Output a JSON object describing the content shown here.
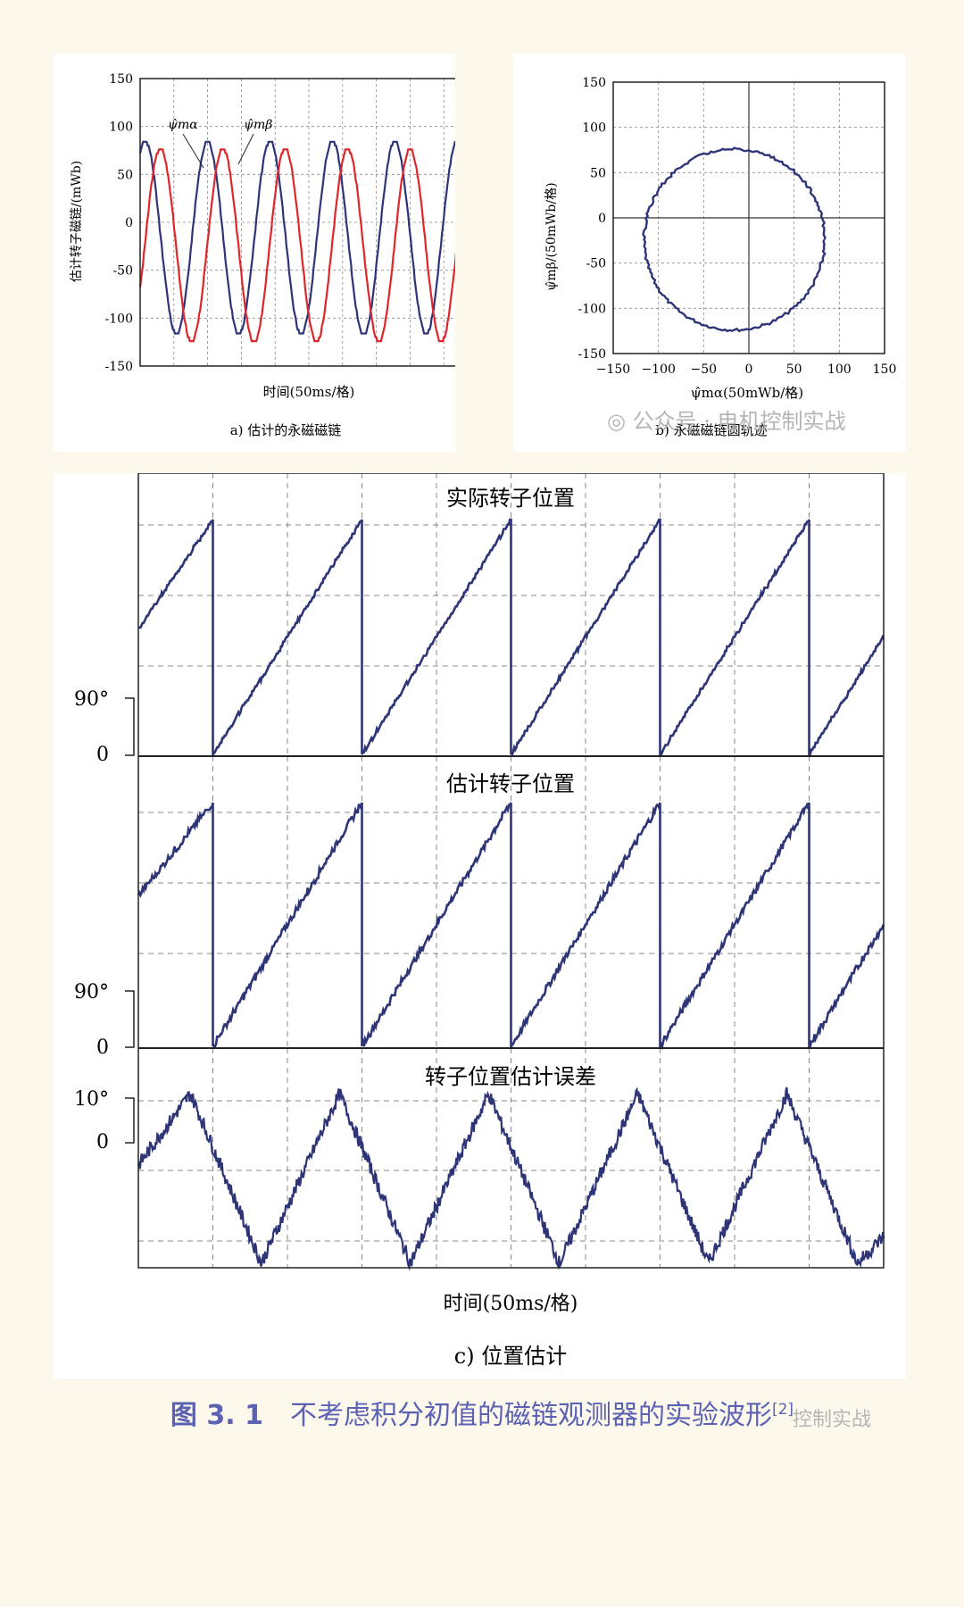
{
  "colors": {
    "blue": "#2e3577",
    "red": "#e0262a",
    "grid": "#8a8a8a",
    "caption": "#5b62b3"
  },
  "captions": {
    "a": "a) 估计的永磁磁链",
    "b": "b) 永磁磁链圆轨迹",
    "c": "c) 位置估计",
    "figure_number": "图 3. 1",
    "figure_title": "不考虑积分初值的磁链观测器的实验波形",
    "ref": "[2]"
  },
  "watermarks": {
    "top": "公众号 · 电机控制实战",
    "bottom": "控制实战"
  },
  "chart_data": [
    {
      "id": "a",
      "type": "line",
      "xlabel": "时间(50ms/格)",
      "ylabel": "估计转子磁链/(mWb)",
      "ylim": [
        -150,
        150
      ],
      "yticks": [
        150,
        100,
        50,
        0,
        -50,
        -100,
        -150
      ],
      "grid": true,
      "x_divisions": 10,
      "x_unit": "divisions (50ms each)",
      "series": [
        {
          "name": "ψ̂mα",
          "color": "blue",
          "shape": "sine",
          "max": 85,
          "min": -117,
          "period_div": 1.85,
          "first_peak_div": 0.15
        },
        {
          "name": "ψ̂mβ",
          "color": "red",
          "shape": "sine",
          "max": 77,
          "min": -125,
          "period_div": 1.85,
          "first_peak_div": 0.6
        }
      ],
      "series_labels": [
        "ψ̂mα",
        "ψ̂mβ"
      ]
    },
    {
      "id": "b",
      "type": "scatter",
      "xlabel": "ψ̂mα(50mWb/格)",
      "ylabel": "ψ̂mβ/(50mWb/格)",
      "xlim": [
        -150,
        150
      ],
      "ylim": [
        -150,
        150
      ],
      "xticks": [
        -150,
        -100,
        -50,
        0,
        50,
        100,
        150
      ],
      "yticks": [
        150,
        100,
        50,
        0,
        -50,
        -100,
        -150
      ],
      "grid": true,
      "circle": {
        "center": [
          -16,
          -24
        ],
        "radius": 100
      }
    },
    {
      "id": "c1",
      "type": "line",
      "title": "实际转子位置",
      "yticks": [
        "90°",
        "0"
      ],
      "ylim": [
        0,
        300
      ],
      "grid": true,
      "x_divisions": 10,
      "shape": "sawtooth",
      "period_div": 2.0,
      "reset_div": [
        1.0,
        3.0,
        5.0,
        7.0,
        9.0
      ],
      "max_deg": 300,
      "start_deg": 160
    },
    {
      "id": "c2",
      "type": "line",
      "title": "估计转子位置",
      "yticks": [
        "90°",
        "0"
      ],
      "ylim": [
        0,
        300
      ],
      "grid": true,
      "x_divisions": 10,
      "shape": "sawtooth",
      "period_div": 2.0,
      "reset_div": [
        1.0,
        3.0,
        5.0,
        7.0,
        9.0
      ],
      "max_deg": 300,
      "start_deg": 185
    },
    {
      "id": "c3",
      "type": "line",
      "title": "转子位置估计误差",
      "yticks": [
        "10°",
        "0"
      ],
      "ylim": [
        -30,
        15
      ],
      "grid": true,
      "x_divisions": 10,
      "xlabel": "时间(50ms/格)",
      "shape": "triangle",
      "peaks_div": [
        0.7,
        2.7,
        4.7,
        6.7,
        8.7
      ],
      "troughs_div": [
        1.65,
        3.65,
        5.65,
        7.65,
        9.65
      ],
      "max_deg": 11,
      "min_deg": -27
    }
  ]
}
